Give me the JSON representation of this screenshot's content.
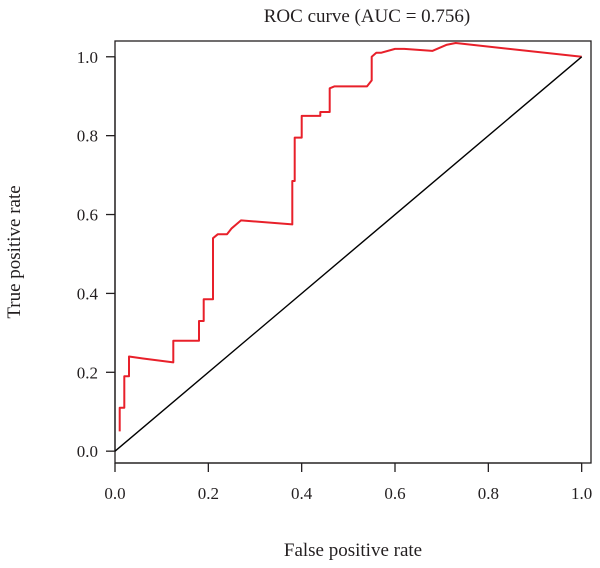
{
  "chart_data": {
    "type": "line",
    "title": "ROC curve (AUC = 0.756)",
    "xlabel": "False positive rate",
    "ylabel": "True positive rate",
    "xlim": [
      0,
      1.02
    ],
    "ylim": [
      -0.03,
      1.04
    ],
    "xticks": [
      0.0,
      0.2,
      0.4,
      0.6,
      0.8,
      1.0
    ],
    "xtick_labels": [
      "0.0",
      "0.2",
      "0.4",
      "0.6",
      "0.8",
      "1.0"
    ],
    "yticks": [
      0.0,
      0.2,
      0.4,
      0.6,
      0.8,
      1.0
    ],
    "ytick_labels": [
      "0.0",
      "0.2",
      "0.4",
      "0.6",
      "0.8",
      "1.0"
    ],
    "grid": false,
    "legend": "none",
    "series": [
      {
        "color": "#e8202a",
        "x": [
          0.01,
          0.01,
          0.02,
          0.02,
          0.03,
          0.03,
          0.06,
          0.125,
          0.125,
          0.18,
          0.18,
          0.19,
          0.19,
          0.21,
          0.21,
          0.22,
          0.24,
          0.25,
          0.26,
          0.27,
          0.38,
          0.38,
          0.385,
          0.385,
          0.4,
          0.4,
          0.44,
          0.44,
          0.46,
          0.46,
          0.47,
          0.54,
          0.55,
          0.55,
          0.56,
          0.57,
          0.6,
          0.62,
          0.68,
          0.71,
          0.73,
          1.0
        ],
        "y": [
          0.05,
          0.11,
          0.11,
          0.19,
          0.19,
          0.24,
          0.235,
          0.225,
          0.28,
          0.28,
          0.33,
          0.33,
          0.385,
          0.385,
          0.54,
          0.55,
          0.55,
          0.565,
          0.575,
          0.585,
          0.575,
          0.685,
          0.685,
          0.795,
          0.795,
          0.85,
          0.85,
          0.86,
          0.86,
          0.92,
          0.925,
          0.925,
          0.94,
          1.0,
          1.01,
          1.01,
          1.02,
          1.02,
          1.015,
          1.03,
          1.035,
          1.0
        ]
      },
      {
        "color": "#000000",
        "x": [
          0.0,
          1.0
        ],
        "y": [
          0.0,
          1.0
        ]
      }
    ]
  }
}
